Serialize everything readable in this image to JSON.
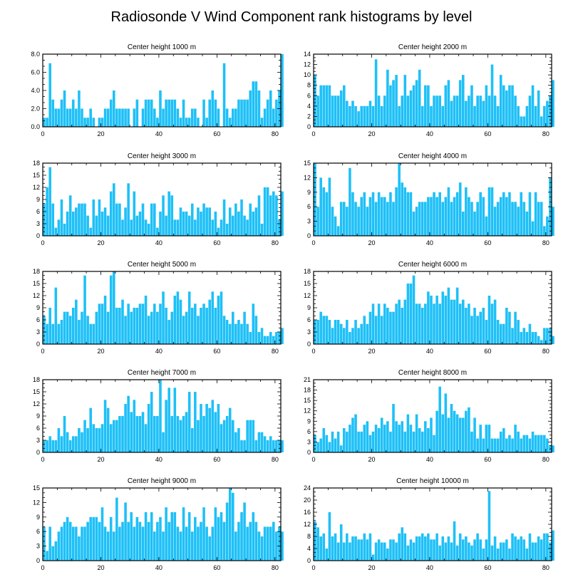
{
  "title": "Radiosonde V Wind Component rank histograms by level",
  "colors": {
    "bar": "#1ec0f7",
    "bar_edge": "#ffffff",
    "axis": "#000000",
    "background": "#ffffff"
  },
  "chart_data": [
    {
      "type": "bar",
      "title": "Center height 1000 m",
      "xlabel": "",
      "ylabel": "",
      "xlim": [
        0,
        82
      ],
      "ylim": [
        0,
        8
      ],
      "xticks": [
        0,
        20,
        40,
        60,
        80
      ],
      "yticks": [
        0,
        2,
        4,
        6,
        8
      ],
      "ytick_labels": [
        "0.0",
        "2.0",
        "4.0",
        "6.0",
        "8.0"
      ],
      "values": [
        1,
        1,
        7,
        3,
        2,
        2,
        3,
        4,
        2,
        2,
        3,
        2,
        4,
        2,
        1,
        1,
        2,
        1,
        0,
        1,
        1,
        2,
        2,
        3,
        4,
        2,
        2,
        2,
        2,
        2,
        0,
        2,
        3,
        0,
        2,
        3,
        3,
        3,
        2,
        1,
        4,
        2,
        3,
        3,
        3,
        3,
        2,
        1,
        3,
        1,
        1,
        2,
        2,
        1,
        0,
        3,
        1,
        3,
        4,
        3,
        2,
        0,
        7,
        2,
        1,
        2,
        2,
        3,
        3,
        3,
        3,
        4,
        5,
        5,
        4,
        1,
        2,
        3,
        4,
        2,
        3,
        4,
        8
      ]
    },
    {
      "type": "bar",
      "title": "Center height 2000 m",
      "xlabel": "",
      "ylabel": "",
      "xlim": [
        0,
        82
      ],
      "ylim": [
        0,
        14
      ],
      "xticks": [
        0,
        20,
        40,
        60,
        80
      ],
      "yticks": [
        0,
        2,
        4,
        6,
        8,
        10,
        12,
        14
      ],
      "ytick_labels": [
        "0",
        "2",
        "4",
        "6",
        "8",
        "10",
        "12",
        "14"
      ],
      "values": [
        10,
        6,
        8,
        8,
        8,
        8,
        6,
        6,
        6,
        7,
        8,
        5,
        4,
        5,
        4,
        3,
        4,
        4,
        4,
        5,
        4,
        13,
        6,
        4,
        6,
        11,
        8,
        9,
        10,
        4,
        6,
        10,
        6,
        7,
        8,
        9,
        11,
        4,
        8,
        8,
        4,
        6,
        6,
        6,
        4,
        8,
        9,
        5,
        6,
        6,
        9,
        10,
        5,
        6,
        8,
        4,
        6,
        6,
        5,
        8,
        6,
        12,
        6,
        4,
        10,
        8,
        7,
        8,
        8,
        6,
        4,
        2,
        2,
        4,
        6,
        8,
        4,
        7,
        2,
        4,
        5,
        6,
        9
      ]
    },
    {
      "type": "bar",
      "title": "Center height 3000 m",
      "xlabel": "",
      "ylabel": "",
      "xlim": [
        0,
        82
      ],
      "ylim": [
        0,
        18
      ],
      "xticks": [
        0,
        20,
        40,
        60,
        80
      ],
      "yticks": [
        0,
        3,
        6,
        9,
        12,
        15,
        18
      ],
      "ytick_labels": [
        "0",
        "3",
        "6",
        "9",
        "12",
        "15",
        "18"
      ],
      "values": [
        8,
        12,
        17,
        8,
        2,
        4,
        9,
        3,
        6,
        10,
        6,
        7,
        8,
        8,
        8,
        5,
        2,
        9,
        5,
        9,
        6,
        7,
        5,
        11,
        13,
        8,
        8,
        4,
        7,
        13,
        4,
        11,
        5,
        6,
        8,
        4,
        3,
        8,
        8,
        2,
        6,
        10,
        5,
        11,
        10,
        4,
        4,
        7,
        6,
        6,
        5,
        8,
        4,
        7,
        6,
        8,
        7,
        7,
        4,
        6,
        2,
        4,
        9,
        3,
        7,
        5,
        8,
        6,
        9,
        5,
        4,
        8,
        6,
        7,
        10,
        3,
        12,
        12,
        10,
        11,
        10,
        4,
        11
      ]
    },
    {
      "type": "bar",
      "title": "Center height 4000 m",
      "xlabel": "",
      "ylabel": "",
      "xlim": [
        0,
        82
      ],
      "ylim": [
        0,
        15
      ],
      "xticks": [
        0,
        20,
        40,
        60,
        80
      ],
      "yticks": [
        0,
        3,
        6,
        9,
        12,
        15
      ],
      "ytick_labels": [
        "0",
        "3",
        "6",
        "9",
        "12",
        "15"
      ],
      "values": [
        15,
        6,
        12,
        10,
        9,
        12,
        6,
        4,
        2,
        7,
        7,
        6,
        14,
        9,
        7,
        6,
        8,
        9,
        6,
        8,
        9,
        7,
        9,
        8,
        8,
        7,
        9,
        7,
        10,
        15,
        11,
        10,
        9,
        9,
        5,
        6,
        7,
        7,
        7,
        8,
        8,
        9,
        8,
        9,
        7,
        8,
        10,
        7,
        8,
        9,
        11,
        5,
        10,
        8,
        7,
        5,
        7,
        9,
        8,
        4,
        10,
        10,
        6,
        7,
        8,
        9,
        8,
        9,
        7,
        7,
        6,
        9,
        7,
        5,
        9,
        3,
        9,
        7,
        7,
        2,
        4,
        12,
        6
      ]
    },
    {
      "type": "bar",
      "title": "Center height 5000 m",
      "xlabel": "",
      "ylabel": "",
      "xlim": [
        0,
        82
      ],
      "ylim": [
        0,
        18
      ],
      "xticks": [
        0,
        20,
        40,
        60,
        80
      ],
      "yticks": [
        0,
        3,
        6,
        9,
        12,
        15,
        18
      ],
      "ytick_labels": [
        "0",
        "3",
        "6",
        "9",
        "12",
        "15",
        "18"
      ],
      "values": [
        7,
        5,
        9,
        5,
        14,
        5,
        6,
        8,
        8,
        7,
        9,
        11,
        6,
        8,
        17,
        7,
        5,
        5,
        8,
        10,
        10,
        12,
        8,
        17,
        18,
        9,
        9,
        11,
        7,
        10,
        8,
        9,
        9,
        10,
        10,
        12,
        7,
        8,
        10,
        8,
        10,
        13,
        9,
        6,
        8,
        12,
        13,
        11,
        7,
        8,
        13,
        9,
        10,
        7,
        9,
        10,
        9,
        11,
        13,
        9,
        12,
        13,
        7,
        6,
        5,
        8,
        5,
        6,
        5,
        8,
        5,
        3,
        10,
        7,
        3,
        4,
        2,
        2,
        3,
        2,
        3,
        3,
        4
      ]
    },
    {
      "type": "bar",
      "title": "Center height 6000 m",
      "xlabel": "",
      "ylabel": "",
      "xlim": [
        0,
        82
      ],
      "ylim": [
        0,
        18
      ],
      "xticks": [
        0,
        20,
        40,
        60,
        80
      ],
      "yticks": [
        0,
        3,
        6,
        9,
        12,
        15,
        18
      ],
      "ytick_labels": [
        "0",
        "3",
        "6",
        "9",
        "12",
        "15",
        "18"
      ],
      "values": [
        6,
        6,
        8,
        7,
        7,
        6,
        4,
        6,
        6,
        5,
        4,
        6,
        3,
        4,
        6,
        4,
        5,
        7,
        5,
        8,
        10,
        7,
        10,
        7,
        10,
        9,
        8,
        8,
        10,
        11,
        9,
        11,
        15,
        15,
        17,
        10,
        10,
        9,
        10,
        13,
        12,
        10,
        12,
        10,
        13,
        12,
        14,
        11,
        11,
        14,
        10,
        11,
        9,
        10,
        7,
        9,
        7,
        8,
        9,
        6,
        12,
        10,
        11,
        6,
        5,
        5,
        9,
        8,
        4,
        8,
        6,
        3,
        4,
        3,
        5,
        3,
        3,
        2,
        1,
        4,
        4,
        4,
        2
      ]
    },
    {
      "type": "bar",
      "title": "Center height 7000 m",
      "xlabel": "",
      "ylabel": "",
      "xlim": [
        0,
        82
      ],
      "ylim": [
        0,
        18
      ],
      "xticks": [
        0,
        20,
        40,
        60,
        80
      ],
      "yticks": [
        0,
        3,
        6,
        9,
        12,
        15,
        18
      ],
      "ytick_labels": [
        "0",
        "3",
        "6",
        "9",
        "12",
        "15",
        "18"
      ],
      "values": [
        3,
        3,
        4,
        3,
        3,
        6,
        4,
        9,
        5,
        3,
        4,
        4,
        6,
        5,
        8,
        6,
        11,
        7,
        6,
        6,
        7,
        13,
        11,
        7,
        8,
        8,
        9,
        9,
        12,
        14,
        10,
        13,
        9,
        9,
        10,
        7,
        12,
        15,
        9,
        9,
        18,
        5,
        13,
        16,
        9,
        16,
        9,
        8,
        9,
        10,
        15,
        6,
        15,
        8,
        12,
        9,
        12,
        11,
        13,
        10,
        12,
        7,
        8,
        9,
        11,
        8,
        5,
        6,
        3,
        3,
        8,
        8,
        8,
        3,
        5,
        5,
        4,
        3,
        4,
        3,
        3,
        3,
        3
      ]
    },
    {
      "type": "bar",
      "title": "Center height 8000 m",
      "xlabel": "",
      "ylabel": "",
      "xlim": [
        0,
        82
      ],
      "ylim": [
        0,
        21
      ],
      "xticks": [
        0,
        20,
        40,
        60,
        80
      ],
      "yticks": [
        0,
        3,
        6,
        9,
        12,
        15,
        18,
        21
      ],
      "ytick_labels": [
        "0",
        "3",
        "6",
        "9",
        "12",
        "15",
        "18",
        "21"
      ],
      "values": [
        5,
        3,
        4,
        7,
        5,
        3,
        6,
        4,
        6,
        2,
        7,
        6,
        8,
        10,
        11,
        6,
        6,
        8,
        9,
        5,
        6,
        8,
        7,
        10,
        8,
        9,
        6,
        14,
        9,
        8,
        9,
        6,
        11,
        8,
        6,
        11,
        7,
        6,
        9,
        7,
        10,
        5,
        12,
        19,
        11,
        17,
        10,
        14,
        12,
        11,
        10,
        10,
        12,
        13,
        6,
        10,
        4,
        8,
        4,
        8,
        8,
        4,
        4,
        4,
        6,
        7,
        4,
        5,
        4,
        8,
        6,
        4,
        5,
        5,
        4,
        6,
        5,
        5,
        5,
        5,
        4,
        2,
        2
      ]
    },
    {
      "type": "bar",
      "title": "Center height 9000 m",
      "xlabel": "",
      "ylabel": "",
      "xlim": [
        0,
        82
      ],
      "ylim": [
        0,
        15
      ],
      "xticks": [
        0,
        20,
        40,
        60,
        80
      ],
      "yticks": [
        0,
        3,
        6,
        9,
        12,
        15
      ],
      "ytick_labels": [
        "0",
        "3",
        "6",
        "9",
        "12",
        "15"
      ],
      "values": [
        7,
        2,
        7,
        3,
        4,
        6,
        7,
        8,
        9,
        8,
        7,
        7,
        5,
        7,
        7,
        8,
        9,
        9,
        9,
        8,
        11,
        7,
        6,
        9,
        6,
        13,
        7,
        8,
        12,
        8,
        10,
        7,
        9,
        8,
        7,
        10,
        8,
        10,
        6,
        8,
        9,
        6,
        11,
        8,
        10,
        10,
        7,
        6,
        11,
        7,
        10,
        6,
        9,
        7,
        8,
        11,
        7,
        5,
        7,
        11,
        9,
        10,
        8,
        12,
        15,
        14,
        6,
        8,
        10,
        12,
        7,
        8,
        10,
        8,
        6,
        5,
        7,
        7,
        7,
        8,
        6,
        7,
        6
      ]
    },
    {
      "type": "bar",
      "title": "Center height 10000 m",
      "xlabel": "",
      "ylabel": "",
      "xlim": [
        0,
        82
      ],
      "ylim": [
        0,
        24
      ],
      "xticks": [
        0,
        20,
        40,
        60,
        80
      ],
      "yticks": [
        0,
        4,
        8,
        12,
        16,
        20,
        24
      ],
      "ytick_labels": [
        "0",
        "4",
        "8",
        "12",
        "16",
        "20",
        "24"
      ],
      "values": [
        13,
        11,
        8,
        9,
        4,
        16,
        8,
        9,
        6,
        12,
        6,
        9,
        6,
        8,
        8,
        7,
        7,
        9,
        7,
        9,
        2,
        6,
        7,
        6,
        6,
        4,
        7,
        7,
        6,
        9,
        11,
        9,
        5,
        7,
        6,
        8,
        8,
        9,
        8,
        9,
        7,
        7,
        9,
        5,
        8,
        6,
        8,
        6,
        13,
        5,
        9,
        7,
        8,
        6,
        5,
        7,
        9,
        7,
        4,
        7,
        23,
        5,
        8,
        4,
        6,
        6,
        7,
        4,
        9,
        8,
        7,
        8,
        7,
        4,
        9,
        6,
        6,
        8,
        7,
        9,
        9,
        6,
        10
      ]
    }
  ]
}
